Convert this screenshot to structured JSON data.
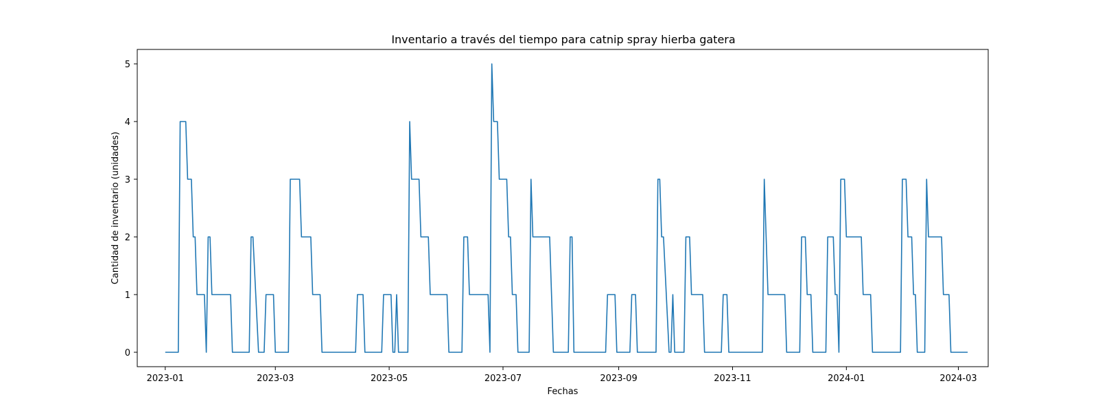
{
  "chart_data": {
    "type": "line",
    "title": "Inventario a través del tiempo para catnip spray hierba gatera",
    "xlabel": "Fechas",
    "ylabel": "Cantidad de inventario (unidades)",
    "grid": false,
    "xlim": [
      "2022-12-17",
      "2024-03-17"
    ],
    "ylim": [
      -0.25,
      5.25
    ],
    "yticks": [
      0,
      1,
      2,
      3,
      4,
      5
    ],
    "xticks": [
      "2023-01",
      "2023-03",
      "2023-05",
      "2023-07",
      "2023-09",
      "2023-11",
      "2024-01",
      "2024-03"
    ],
    "series": [
      {
        "color": "#1f77b4",
        "points": [
          [
            "2023-01-01",
            0
          ],
          [
            "2023-01-08",
            0
          ],
          [
            "2023-01-09",
            4
          ],
          [
            "2023-01-12",
            4
          ],
          [
            "2023-01-13",
            3
          ],
          [
            "2023-01-15",
            3
          ],
          [
            "2023-01-16",
            2
          ],
          [
            "2023-01-17",
            2
          ],
          [
            "2023-01-18",
            1
          ],
          [
            "2023-01-22",
            1
          ],
          [
            "2023-01-23",
            0
          ],
          [
            "2023-01-24",
            2
          ],
          [
            "2023-01-25",
            2
          ],
          [
            "2023-01-26",
            1
          ],
          [
            "2023-02-05",
            1
          ],
          [
            "2023-02-06",
            0
          ],
          [
            "2023-02-15",
            0
          ],
          [
            "2023-02-16",
            2
          ],
          [
            "2023-02-17",
            2
          ],
          [
            "2023-02-20",
            0
          ],
          [
            "2023-02-23",
            0
          ],
          [
            "2023-02-24",
            1
          ],
          [
            "2023-02-28",
            1
          ],
          [
            "2023-03-01",
            0
          ],
          [
            "2023-03-08",
            0
          ],
          [
            "2023-03-09",
            3
          ],
          [
            "2023-03-14",
            3
          ],
          [
            "2023-03-15",
            2
          ],
          [
            "2023-03-20",
            2
          ],
          [
            "2023-03-21",
            1
          ],
          [
            "2023-03-25",
            1
          ],
          [
            "2023-03-26",
            0
          ],
          [
            "2023-04-13",
            0
          ],
          [
            "2023-04-14",
            1
          ],
          [
            "2023-04-17",
            1
          ],
          [
            "2023-04-18",
            0
          ],
          [
            "2023-04-27",
            0
          ],
          [
            "2023-04-28",
            1
          ],
          [
            "2023-05-02",
            1
          ],
          [
            "2023-05-03",
            0
          ],
          [
            "2023-05-04",
            0
          ],
          [
            "2023-05-05",
            1
          ],
          [
            "2023-05-06",
            0
          ],
          [
            "2023-05-11",
            0
          ],
          [
            "2023-05-12",
            4
          ],
          [
            "2023-05-13",
            3
          ],
          [
            "2023-05-17",
            3
          ],
          [
            "2023-05-18",
            2
          ],
          [
            "2023-05-22",
            2
          ],
          [
            "2023-05-23",
            1
          ],
          [
            "2023-06-01",
            1
          ],
          [
            "2023-06-02",
            0
          ],
          [
            "2023-06-09",
            0
          ],
          [
            "2023-06-10",
            2
          ],
          [
            "2023-06-12",
            2
          ],
          [
            "2023-06-13",
            1
          ],
          [
            "2023-06-23",
            1
          ],
          [
            "2023-06-24",
            0
          ],
          [
            "2023-06-25",
            5
          ],
          [
            "2023-06-26",
            4
          ],
          [
            "2023-06-28",
            4
          ],
          [
            "2023-06-29",
            3
          ],
          [
            "2023-07-03",
            3
          ],
          [
            "2023-07-04",
            2
          ],
          [
            "2023-07-05",
            2
          ],
          [
            "2023-07-06",
            1
          ],
          [
            "2023-07-08",
            1
          ],
          [
            "2023-07-09",
            0
          ],
          [
            "2023-07-15",
            0
          ],
          [
            "2023-07-16",
            3
          ],
          [
            "2023-07-17",
            2
          ],
          [
            "2023-07-26",
            2
          ],
          [
            "2023-07-27",
            1
          ],
          [
            "2023-07-28",
            0
          ],
          [
            "2023-08-05",
            0
          ],
          [
            "2023-08-06",
            2
          ],
          [
            "2023-08-07",
            2
          ],
          [
            "2023-08-08",
            0
          ],
          [
            "2023-08-25",
            0
          ],
          [
            "2023-08-26",
            1
          ],
          [
            "2023-08-30",
            1
          ],
          [
            "2023-08-31",
            0
          ],
          [
            "2023-09-07",
            0
          ],
          [
            "2023-09-08",
            1
          ],
          [
            "2023-09-10",
            1
          ],
          [
            "2023-09-11",
            0
          ],
          [
            "2023-09-21",
            0
          ],
          [
            "2023-09-22",
            3
          ],
          [
            "2023-09-23",
            3
          ],
          [
            "2023-09-24",
            2
          ],
          [
            "2023-09-25",
            2
          ],
          [
            "2023-09-28",
            0
          ],
          [
            "2023-09-29",
            0
          ],
          [
            "2023-09-30",
            1
          ],
          [
            "2023-10-01",
            0
          ],
          [
            "2023-10-06",
            0
          ],
          [
            "2023-10-07",
            2
          ],
          [
            "2023-10-09",
            2
          ],
          [
            "2023-10-10",
            1
          ],
          [
            "2023-10-16",
            1
          ],
          [
            "2023-10-17",
            0
          ],
          [
            "2023-10-26",
            0
          ],
          [
            "2023-10-27",
            1
          ],
          [
            "2023-10-29",
            1
          ],
          [
            "2023-10-30",
            0
          ],
          [
            "2023-11-17",
            0
          ],
          [
            "2023-11-18",
            3
          ],
          [
            "2023-11-20",
            1
          ],
          [
            "2023-11-29",
            1
          ],
          [
            "2023-11-30",
            0
          ],
          [
            "2023-12-07",
            0
          ],
          [
            "2023-12-08",
            2
          ],
          [
            "2023-12-10",
            2
          ],
          [
            "2023-12-11",
            1
          ],
          [
            "2023-12-13",
            1
          ],
          [
            "2023-12-14",
            0
          ],
          [
            "2023-12-21",
            0
          ],
          [
            "2023-12-22",
            2
          ],
          [
            "2023-12-25",
            2
          ],
          [
            "2023-12-26",
            1
          ],
          [
            "2023-12-27",
            1
          ],
          [
            "2023-12-28",
            0
          ],
          [
            "2023-12-29",
            3
          ],
          [
            "2023-12-31",
            3
          ],
          [
            "2024-01-01",
            2
          ],
          [
            "2024-01-09",
            2
          ],
          [
            "2024-01-10",
            1
          ],
          [
            "2024-01-14",
            1
          ],
          [
            "2024-01-15",
            0
          ],
          [
            "2024-01-30",
            0
          ],
          [
            "2024-01-31",
            3
          ],
          [
            "2024-02-02",
            3
          ],
          [
            "2024-02-03",
            2
          ],
          [
            "2024-02-05",
            2
          ],
          [
            "2024-02-06",
            1
          ],
          [
            "2024-02-07",
            1
          ],
          [
            "2024-02-08",
            0
          ],
          [
            "2024-02-12",
            0
          ],
          [
            "2024-02-13",
            3
          ],
          [
            "2024-02-14",
            2
          ],
          [
            "2024-02-21",
            2
          ],
          [
            "2024-02-22",
            1
          ],
          [
            "2024-02-25",
            1
          ],
          [
            "2024-02-26",
            0
          ],
          [
            "2024-03-06",
            0
          ]
        ]
      }
    ]
  }
}
